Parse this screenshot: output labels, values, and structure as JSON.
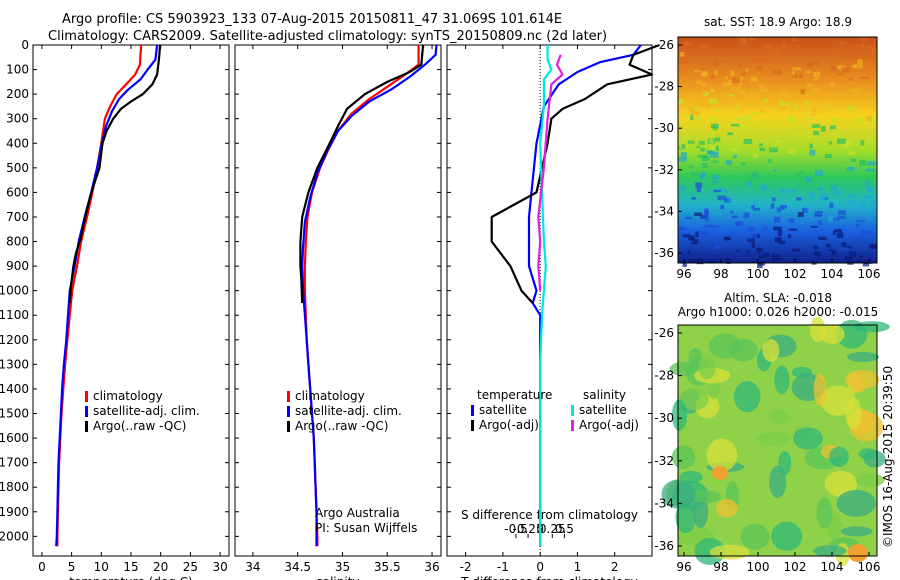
{
  "title": {
    "line1": "Argo profile: CS 5903923_133 07-Aug-2015 20150811_47 31.069S 101.614E",
    "line2": "Climatology: CARS2009. Satellite-adjusted climatology: synTS_20150809.nc (2d later)"
  },
  "colors": {
    "climatology": "#ff0000",
    "satellite": "#0000ff",
    "argo": "#000000",
    "satellite_salinity": "#00e5e5",
    "argo_salinity": "#e020e0"
  },
  "credit": "©IMOS 16-Aug-2015 20:39:50",
  "annotations": {
    "argo_australia": "Argo Australia",
    "pi": "PI: Susan Wijffels"
  },
  "chart_data": [
    {
      "type": "line",
      "panel": "temperature",
      "xlabel": "temperature (deg C)",
      "xlim": [
        -1.5,
        31.5
      ],
      "ylim": [
        2080,
        0
      ],
      "xticks": [
        0,
        5,
        10,
        15,
        20,
        25,
        30
      ],
      "yticks": [
        0,
        100,
        200,
        300,
        400,
        500,
        600,
        700,
        800,
        900,
        1000,
        1100,
        1200,
        1300,
        1400,
        1500,
        1600,
        1700,
        1800,
        1900,
        2000
      ],
      "legend": [
        "climatology",
        "satellite-adj. clim.",
        "Argo(..raw -QC)"
      ],
      "series": [
        {
          "name": "climatology",
          "color": "#ff0000",
          "points": [
            [
              16.7,
              0
            ],
            [
              16.5,
              80
            ],
            [
              15.7,
              120
            ],
            [
              14.2,
              160
            ],
            [
              12.6,
              200
            ],
            [
              11.5,
              250
            ],
            [
              10.6,
              300
            ],
            [
              10.0,
              400
            ],
            [
              9.3,
              500
            ],
            [
              8.5,
              600
            ],
            [
              7.6,
              700
            ],
            [
              6.6,
              800
            ],
            [
              5.9,
              900
            ],
            [
              5.1,
              1000
            ],
            [
              4.7,
              1100
            ],
            [
              4.3,
              1200
            ],
            [
              3.9,
              1300
            ],
            [
              3.6,
              1400
            ],
            [
              3.3,
              1500
            ],
            [
              3.1,
              1600
            ],
            [
              2.9,
              1700
            ],
            [
              2.8,
              1800
            ],
            [
              2.7,
              1900
            ],
            [
              2.6,
              2000
            ],
            [
              2.6,
              2040
            ]
          ]
        },
        {
          "name": "satellite-adj. clim.",
          "color": "#0000ff",
          "points": [
            [
              19.4,
              0
            ],
            [
              19.1,
              60
            ],
            [
              17.8,
              100
            ],
            [
              16.6,
              140
            ],
            [
              14.6,
              180
            ],
            [
              13.0,
              220
            ],
            [
              11.8,
              270
            ],
            [
              10.8,
              330
            ],
            [
              10.1,
              400
            ],
            [
              9.3,
              500
            ],
            [
              8.3,
              600
            ],
            [
              7.2,
              700
            ],
            [
              6.2,
              800
            ],
            [
              5.5,
              900
            ],
            [
              4.7,
              1000
            ],
            [
              4.4,
              1100
            ],
            [
              4.1,
              1200
            ],
            [
              3.7,
              1300
            ],
            [
              3.4,
              1400
            ],
            [
              3.2,
              1500
            ],
            [
              3.0,
              1600
            ],
            [
              2.8,
              1700
            ],
            [
              2.7,
              1800
            ],
            [
              2.6,
              1900
            ],
            [
              2.5,
              2000
            ],
            [
              2.4,
              2040
            ]
          ]
        },
        {
          "name": "Argo(..raw -QC)",
          "color": "#000000",
          "points": [
            [
              19.9,
              0
            ],
            [
              19.7,
              60
            ],
            [
              19.4,
              120
            ],
            [
              18.6,
              160
            ],
            [
              17.0,
              200
            ],
            [
              15.0,
              230
            ],
            [
              13.3,
              260
            ],
            [
              12.0,
              300
            ],
            [
              10.9,
              350
            ],
            [
              10.2,
              400
            ],
            [
              9.7,
              500
            ],
            [
              9.0,
              550
            ],
            [
              8.1,
              620
            ],
            [
              7.3,
              700
            ],
            [
              6.5,
              790
            ],
            [
              5.7,
              850
            ],
            [
              5.3,
              900
            ],
            [
              4.9,
              980
            ],
            [
              4.7,
              1050
            ]
          ]
        }
      ]
    },
    {
      "type": "line",
      "panel": "salinity",
      "xlabel": "salinity",
      "xlim": [
        33.8,
        36.1
      ],
      "ylim": [
        2080,
        0
      ],
      "xticks": [
        34,
        34.5,
        35,
        35.5,
        36
      ],
      "legend": [
        "climatology",
        "satellite-adj. clim.",
        "Argo(..raw -QC)"
      ],
      "series": [
        {
          "name": "climatology",
          "color": "#ff0000",
          "points": [
            [
              35.85,
              0
            ],
            [
              35.85,
              80
            ],
            [
              35.7,
              120
            ],
            [
              35.5,
              170
            ],
            [
              35.3,
              220
            ],
            [
              35.1,
              280
            ],
            [
              34.95,
              350
            ],
            [
              34.85,
              420
            ],
            [
              34.75,
              500
            ],
            [
              34.66,
              600
            ],
            [
              34.61,
              700
            ],
            [
              34.59,
              800
            ],
            [
              34.58,
              900
            ],
            [
              34.58,
              1000
            ],
            [
              34.59,
              1100
            ],
            [
              34.6,
              1200
            ],
            [
              34.62,
              1300
            ],
            [
              34.64,
              1400
            ],
            [
              34.66,
              1500
            ],
            [
              34.68,
              1600
            ],
            [
              34.69,
              1700
            ],
            [
              34.7,
              1800
            ],
            [
              34.71,
              1900
            ],
            [
              34.72,
              2000
            ],
            [
              34.72,
              2040
            ]
          ]
        },
        {
          "name": "satellite-adj. clim.",
          "color": "#0000ff",
          "points": [
            [
              36.05,
              0
            ],
            [
              36.04,
              40
            ],
            [
              35.92,
              80
            ],
            [
              35.75,
              130
            ],
            [
              35.55,
              180
            ],
            [
              35.3,
              230
            ],
            [
              35.1,
              290
            ],
            [
              34.95,
              350
            ],
            [
              34.83,
              430
            ],
            [
              34.72,
              520
            ],
            [
              34.64,
              620
            ],
            [
              34.58,
              720
            ],
            [
              34.56,
              820
            ],
            [
              34.55,
              900
            ],
            [
              34.56,
              1000
            ],
            [
              34.58,
              1100
            ],
            [
              34.6,
              1200
            ],
            [
              34.62,
              1300
            ],
            [
              34.64,
              1400
            ],
            [
              34.66,
              1500
            ],
            [
              34.68,
              1600
            ],
            [
              34.69,
              1700
            ],
            [
              34.7,
              1800
            ],
            [
              34.71,
              1900
            ],
            [
              34.71,
              2000
            ],
            [
              34.71,
              2040
            ]
          ]
        },
        {
          "name": "Argo(..raw -QC)",
          "color": "#000000",
          "points": [
            [
              35.9,
              0
            ],
            [
              35.88,
              80
            ],
            [
              35.75,
              110
            ],
            [
              35.5,
              150
            ],
            [
              35.25,
              200
            ],
            [
              35.05,
              260
            ],
            [
              34.95,
              330
            ],
            [
              34.83,
              420
            ],
            [
              34.72,
              500
            ],
            [
              34.62,
              600
            ],
            [
              34.55,
              700
            ],
            [
              34.53,
              800
            ],
            [
              34.53,
              900
            ],
            [
              34.54,
              950
            ],
            [
              34.55,
              1050
            ]
          ]
        }
      ]
    },
    {
      "type": "line",
      "panel": "differences",
      "xlabel": "T difference from climatology",
      "x2label": "S difference from climatology",
      "xlim": [
        -2.5,
        3.0
      ],
      "ylim": [
        2080,
        0
      ],
      "xticks": [
        -2,
        -1,
        0,
        1,
        2
      ],
      "x2ticks": [
        -0.5,
        -0.25,
        0,
        0.25,
        0.5
      ],
      "legend_temperature": {
        "title": "temperature",
        "entries": [
          "satellite",
          "Argo(-adj)"
        ]
      },
      "legend_salinity": {
        "title": "salinity",
        "entries": [
          "satellite",
          "Argo(-adj)"
        ]
      },
      "series": [
        {
          "name": "temperature satellite",
          "color": "#0000ff",
          "points": [
            [
              2.7,
              0
            ],
            [
              2.5,
              40
            ],
            [
              1.6,
              70
            ],
            [
              1.0,
              110
            ],
            [
              0.5,
              160
            ],
            [
              0.1,
              250
            ],
            [
              -0.1,
              400
            ],
            [
              -0.2,
              550
            ],
            [
              -0.3,
              700
            ],
            [
              -0.3,
              900
            ],
            [
              -0.1,
              1000
            ],
            [
              -0.2,
              1050
            ],
            [
              0,
              1100
            ],
            [
              0,
              2040
            ]
          ]
        },
        {
          "name": "temperature Argo(-adj)",
          "color": "#000000",
          "points": [
            [
              3.2,
              0
            ],
            [
              2.5,
              40
            ],
            [
              2.4,
              80
            ],
            [
              3.0,
              120
            ],
            [
              1.8,
              160
            ],
            [
              1.2,
              220
            ],
            [
              0.6,
              260
            ],
            [
              0.3,
              300
            ],
            [
              0.2,
              400
            ],
            [
              -0.1,
              600
            ],
            [
              -1.3,
              700
            ],
            [
              -1.3,
              800
            ],
            [
              -0.8,
              900
            ],
            [
              -0.5,
              1000
            ],
            [
              -0.2,
              1050
            ]
          ]
        },
        {
          "name": "salinity satellite",
          "color": "#00e5e5",
          "points": [
            [
              0.2,
              0
            ],
            [
              0.2,
              60
            ],
            [
              0.3,
              100
            ],
            [
              0.1,
              140
            ],
            [
              0.1,
              250
            ],
            [
              0.0,
              400
            ],
            [
              0.05,
              600
            ],
            [
              0.1,
              800
            ],
            [
              0.15,
              900
            ],
            [
              0.1,
              1000
            ],
            [
              0.05,
              1100
            ],
            [
              0.0,
              1300
            ],
            [
              0.0,
              2040
            ]
          ]
        },
        {
          "name": "salinity Argo(-adj)",
          "color": "#e020e0",
          "points": [
            [
              0.55,
              40
            ],
            [
              0.45,
              80
            ],
            [
              0.6,
              120
            ],
            [
              0.3,
              160
            ],
            [
              0.2,
              300
            ],
            [
              0.1,
              500
            ],
            [
              -0.05,
              700
            ],
            [
              0.0,
              800
            ],
            [
              -0.05,
              900
            ],
            [
              0.0,
              1000
            ]
          ]
        }
      ]
    }
  ],
  "maps": {
    "sst": {
      "title": "sat. SST: 18.9 Argo: 18.9",
      "xticks": [
        "96",
        "98",
        "100",
        "102",
        "104",
        "106"
      ],
      "yticks": [
        "-26",
        "-28",
        "-30",
        "-32",
        "-34",
        "-36"
      ]
    },
    "sla": {
      "title_line1": "Altim. SLA: -0.018",
      "title_line2": "Argo h1000: 0.026 h2000: -0.015",
      "xticks": [
        "96",
        "98",
        "100",
        "102",
        "104",
        "106"
      ],
      "yticks": [
        "-26",
        "-28",
        "-30",
        "-32",
        "-34",
        "-36"
      ]
    }
  }
}
